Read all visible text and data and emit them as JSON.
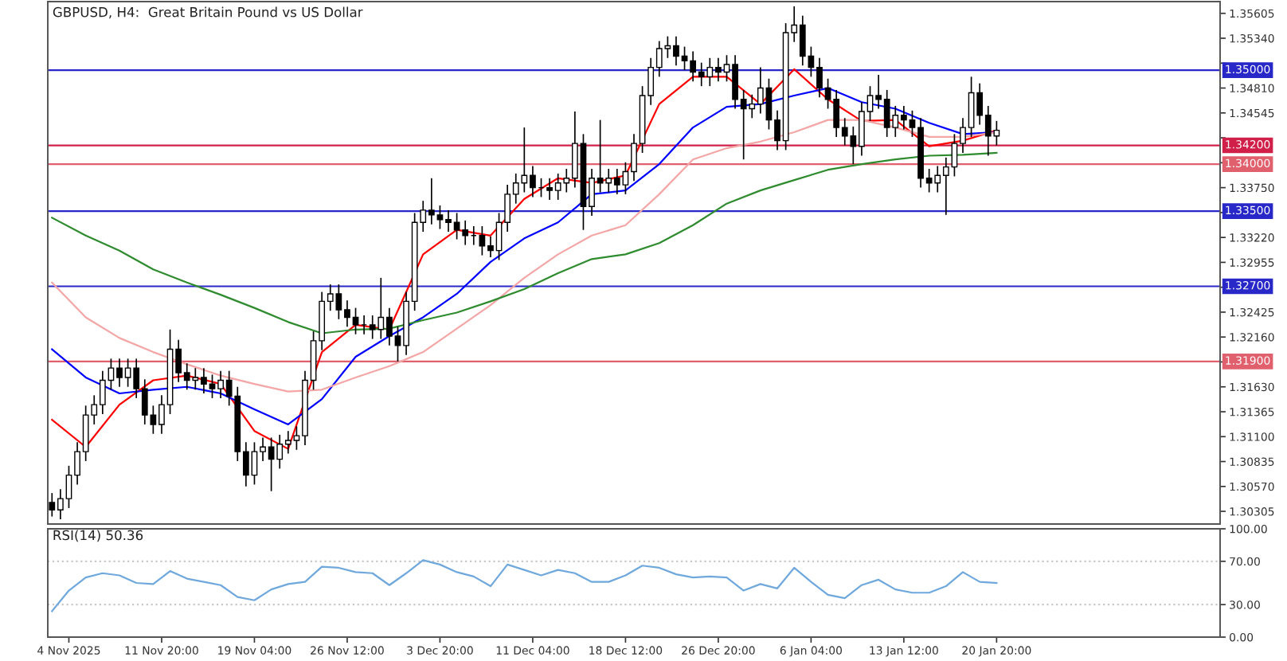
{
  "chart_data": [
    {
      "type": "candlestick",
      "title": "GBPUSD, H4:  Great Britain Pound vs US Dollar",
      "tick_labels": "y",
      "categories": [
        null,
        null,
        null,
        null,
        null,
        null,
        null,
        null,
        null,
        null,
        null,
        null,
        null,
        null,
        null,
        null,
        null,
        null,
        null,
        null,
        null,
        null,
        null,
        null,
        null,
        null,
        null,
        null,
        null,
        null,
        null,
        null,
        null,
        null,
        null,
        null,
        null,
        null,
        null,
        null,
        null,
        null,
        null,
        null,
        null,
        null,
        null,
        null,
        null,
        null,
        null,
        null,
        null,
        null,
        null,
        null,
        null,
        null,
        null,
        null,
        null,
        null,
        null,
        null,
        null,
        null,
        null,
        null,
        null,
        null,
        null,
        null,
        null,
        null,
        null,
        null,
        null,
        null,
        null,
        null,
        null,
        null,
        null,
        null,
        null,
        null,
        null,
        null,
        null,
        null,
        null,
        null,
        null,
        null,
        null,
        null,
        null,
        null,
        null,
        null,
        null,
        null,
        null,
        null,
        null,
        null,
        null,
        null,
        null,
        null,
        null,
        null,
        null,
        null,
        null,
        null,
        null,
        null,
        null,
        null,
        null,
        null,
        null,
        null,
        null,
        null,
        null,
        null,
        null,
        null,
        null,
        null,
        null,
        null,
        null,
        null,
        null,
        null,
        null
      ],
      "ohlc": [
        [
          1.304,
          1.305,
          1.3025,
          1.3032
        ],
        [
          1.3032,
          1.3054,
          1.3022,
          1.3044
        ],
        [
          1.3044,
          1.3079,
          1.3034,
          1.3069
        ],
        [
          1.3069,
          1.3104,
          1.3059,
          1.3094
        ],
        [
          1.3094,
          1.3143,
          1.3084,
          1.3133
        ],
        [
          1.3133,
          1.3154,
          1.3123,
          1.3144
        ],
        [
          1.3144,
          1.318,
          1.3134,
          1.317
        ],
        [
          1.317,
          1.3193,
          1.316,
          1.3183
        ],
        [
          1.3183,
          1.3193,
          1.3163,
          1.3173
        ],
        [
          1.3173,
          1.3193,
          1.3163,
          1.3183
        ],
        [
          1.3183,
          1.3193,
          1.3151,
          1.3161
        ],
        [
          1.3161,
          1.3171,
          1.3123,
          1.3133
        ],
        [
          1.3133,
          1.3143,
          1.3113,
          1.3123
        ],
        [
          1.3123,
          1.3154,
          1.3113,
          1.3144
        ],
        [
          1.3144,
          1.3224,
          1.3134,
          1.3203
        ],
        [
          1.3203,
          1.3213,
          1.3168,
          1.3178
        ],
        [
          1.3178,
          1.3188,
          1.316,
          1.317
        ],
        [
          1.317,
          1.3183,
          1.316,
          1.3173
        ],
        [
          1.3173,
          1.3183,
          1.3156,
          1.3166
        ],
        [
          1.3166,
          1.3176,
          1.3151,
          1.3161
        ],
        [
          1.3161,
          1.318,
          1.3151,
          1.317
        ],
        [
          1.317,
          1.318,
          1.3143,
          1.3153
        ],
        [
          1.3153,
          1.3163,
          1.3084,
          1.3094
        ],
        [
          1.3094,
          1.3104,
          1.3057,
          1.3069
        ],
        [
          1.3069,
          1.3104,
          1.3059,
          1.3094
        ],
        [
          1.3094,
          1.3109,
          1.3084,
          1.3099
        ],
        [
          1.3099,
          1.3109,
          1.3052,
          1.3086
        ],
        [
          1.3086,
          1.3112,
          1.3076,
          1.3102
        ],
        [
          1.3102,
          1.3116,
          1.3092,
          1.3106
        ],
        [
          1.3106,
          1.3121,
          1.3096,
          1.3111
        ],
        [
          1.3111,
          1.318,
          1.3101,
          1.317
        ],
        [
          1.317,
          1.3222,
          1.316,
          1.3212
        ],
        [
          1.3212,
          1.3264,
          1.3202,
          1.3254
        ],
        [
          1.3254,
          1.3272,
          1.3244,
          1.3262
        ],
        [
          1.3262,
          1.3272,
          1.3235,
          1.3245
        ],
        [
          1.3245,
          1.3255,
          1.3227,
          1.3237
        ],
        [
          1.3237,
          1.3247,
          1.3219,
          1.3229
        ],
        [
          1.3229,
          1.3239,
          1.3219,
          1.3229
        ],
        [
          1.3229,
          1.3239,
          1.3214,
          1.3224
        ],
        [
          1.3224,
          1.3279,
          1.3214,
          1.3237
        ],
        [
          1.3237,
          1.3247,
          1.3207,
          1.3217
        ],
        [
          1.3217,
          1.3227,
          1.319,
          1.3207
        ],
        [
          1.3207,
          1.3264,
          1.3197,
          1.3254
        ],
        [
          1.3254,
          1.3348,
          1.3244,
          1.3338
        ],
        [
          1.3338,
          1.3361,
          1.3328,
          1.3351
        ],
        [
          1.3351,
          1.3385,
          1.3336,
          1.3346
        ],
        [
          1.3346,
          1.3356,
          1.3331,
          1.3341
        ],
        [
          1.3341,
          1.3351,
          1.3328,
          1.3338
        ],
        [
          1.3338,
          1.3348,
          1.332,
          1.333
        ],
        [
          1.333,
          1.334,
          1.3314,
          1.3324
        ],
        [
          1.3324,
          1.3334,
          1.3314,
          1.3324
        ],
        [
          1.3324,
          1.3334,
          1.3303,
          1.3313
        ],
        [
          1.3313,
          1.3323,
          1.3301,
          1.3308
        ],
        [
          1.3308,
          1.3348,
          1.3298,
          1.3338
        ],
        [
          1.3338,
          1.3378,
          1.3328,
          1.3368
        ],
        [
          1.3368,
          1.339,
          1.3358,
          1.338
        ],
        [
          1.338,
          1.3439,
          1.337,
          1.3388
        ],
        [
          1.3388,
          1.3398,
          1.3365,
          1.3375
        ],
        [
          1.3375,
          1.3385,
          1.3365,
          1.3375
        ],
        [
          1.3375,
          1.3385,
          1.3362,
          1.3372
        ],
        [
          1.3372,
          1.339,
          1.3362,
          1.338
        ],
        [
          1.338,
          1.3395,
          1.337,
          1.3385
        ],
        [
          1.3385,
          1.3456,
          1.3375,
          1.3422
        ],
        [
          1.3422,
          1.3432,
          1.333,
          1.3355
        ],
        [
          1.3355,
          1.3395,
          1.3345,
          1.3385
        ],
        [
          1.3385,
          1.3447,
          1.337,
          1.338
        ],
        [
          1.338,
          1.3395,
          1.337,
          1.3385
        ],
        [
          1.3385,
          1.3395,
          1.3368,
          1.3378
        ],
        [
          1.3378,
          1.3402,
          1.3368,
          1.3392
        ],
        [
          1.3392,
          1.3432,
          1.3382,
          1.3422
        ],
        [
          1.3422,
          1.3483,
          1.3412,
          1.3473
        ],
        [
          1.3473,
          1.3513,
          1.3463,
          1.3503
        ],
        [
          1.3503,
          1.3531,
          1.3493,
          1.3523
        ],
        [
          1.3523,
          1.3536,
          1.3513,
          1.3526
        ],
        [
          1.3526,
          1.3536,
          1.3505,
          1.3515
        ],
        [
          1.3515,
          1.3525,
          1.35,
          1.351
        ],
        [
          1.351,
          1.352,
          1.3488,
          1.3498
        ],
        [
          1.3498,
          1.3508,
          1.3483,
          1.3493
        ],
        [
          1.3493,
          1.3513,
          1.3483,
          1.3503
        ],
        [
          1.3503,
          1.3513,
          1.3488,
          1.3498
        ],
        [
          1.3498,
          1.3516,
          1.3488,
          1.3506
        ],
        [
          1.3506,
          1.3516,
          1.3459,
          1.3469
        ],
        [
          1.3469,
          1.3479,
          1.3405,
          1.3459
        ],
        [
          1.3459,
          1.3474,
          1.3449,
          1.3464
        ],
        [
          1.3464,
          1.3503,
          1.3454,
          1.3481
        ],
        [
          1.3481,
          1.3491,
          1.3437,
          1.3447
        ],
        [
          1.3447,
          1.3457,
          1.3415,
          1.3425
        ],
        [
          1.3425,
          1.355,
          1.3415,
          1.354
        ],
        [
          1.354,
          1.3568,
          1.353,
          1.3548
        ],
        [
          1.3548,
          1.3558,
          1.3505,
          1.3515
        ],
        [
          1.3515,
          1.3525,
          1.3493,
          1.3503
        ],
        [
          1.3503,
          1.3513,
          1.3471,
          1.3481
        ],
        [
          1.3481,
          1.3491,
          1.3459,
          1.3469
        ],
        [
          1.3469,
          1.3479,
          1.3429,
          1.3439
        ],
        [
          1.3439,
          1.3449,
          1.342,
          1.343
        ],
        [
          1.343,
          1.344,
          1.34,
          1.3419
        ],
        [
          1.3419,
          1.3466,
          1.3409,
          1.3456
        ],
        [
          1.3456,
          1.3483,
          1.3446,
          1.3473
        ],
        [
          1.3473,
          1.3495,
          1.3459,
          1.3469
        ],
        [
          1.3469,
          1.3479,
          1.3429,
          1.3439
        ],
        [
          1.3439,
          1.3462,
          1.3429,
          1.3452
        ],
        [
          1.3452,
          1.3462,
          1.3437,
          1.3447
        ],
        [
          1.3447,
          1.3457,
          1.3429,
          1.3439
        ],
        [
          1.3439,
          1.3449,
          1.3375,
          1.3385
        ],
        [
          1.3385,
          1.3395,
          1.337,
          1.338
        ],
        [
          1.338,
          1.3398,
          1.337,
          1.3388
        ],
        [
          1.3388,
          1.3407,
          1.3346,
          1.3397
        ],
        [
          1.3397,
          1.3432,
          1.3387,
          1.3422
        ],
        [
          1.3422,
          1.3449,
          1.3412,
          1.3439
        ],
        [
          1.3439,
          1.3493,
          1.3429,
          1.3476
        ],
        [
          1.3476,
          1.3486,
          1.3442,
          1.3452
        ],
        [
          1.3452,
          1.3462,
          1.3409,
          1.343
        ],
        [
          1.343,
          1.3446,
          1.342,
          1.3436
        ],
        null,
        null,
        null,
        null,
        null,
        null,
        null,
        null,
        null,
        null,
        null,
        null,
        null,
        null,
        null,
        null,
        null,
        null,
        null,
        null,
        null,
        null,
        null,
        null,
        null,
        null
      ],
      "series": [
        {
          "type": "line",
          "color": "#ff0000",
          "values": [
            1.3128,
            null,
            null,
            null,
            1.3099,
            null,
            null,
            null,
            1.3144,
            null,
            null,
            null,
            1.317,
            null,
            null,
            null,
            1.3175,
            null,
            null,
            null,
            1.3166,
            null,
            null,
            null,
            1.3116,
            null,
            null,
            null,
            1.3097,
            null,
            null,
            null,
            1.32,
            null,
            null,
            null,
            1.3229,
            null,
            null,
            null,
            1.3224,
            null,
            null,
            null,
            1.3304,
            null,
            null,
            null,
            1.333,
            null,
            null,
            null,
            1.3324,
            null,
            null,
            null,
            1.3363,
            null,
            null,
            null,
            1.3385,
            null,
            null,
            null,
            1.338,
            null,
            null,
            null,
            1.3388,
            null,
            null,
            null,
            1.3464,
            null,
            null,
            null,
            1.3493,
            null,
            null,
            null,
            1.3493,
            null,
            null,
            null,
            1.3464,
            null,
            null,
            null,
            1.3501,
            null,
            null,
            null,
            1.3469,
            null,
            null,
            null,
            1.3446,
            null,
            null,
            null,
            1.3447,
            null,
            null,
            null,
            1.3419,
            null,
            null,
            null,
            1.3425,
            null,
            null,
            null,
            1.3436,
            null,
            null,
            null,
            null,
            null,
            null,
            null,
            null,
            null,
            null,
            null,
            null,
            null,
            null,
            null,
            null,
            null,
            null,
            null,
            null,
            null,
            null,
            null,
            null,
            null,
            null
          ]
        },
        {
          "type": "line",
          "color": "#0000ff",
          "values": [
            1.3203,
            null,
            null,
            null,
            1.3173,
            null,
            null,
            null,
            1.3156,
            null,
            null,
            null,
            1.316,
            null,
            null,
            null,
            1.3163,
            null,
            null,
            null,
            1.3156,
            null,
            null,
            null,
            1.3139,
            null,
            null,
            null,
            1.3123,
            null,
            null,
            null,
            1.315,
            null,
            null,
            null,
            1.3195,
            null,
            null,
            null,
            1.3217,
            null,
            null,
            null,
            1.3237,
            null,
            null,
            null,
            1.3262,
            null,
            null,
            null,
            1.3296,
            null,
            null,
            null,
            1.3321,
            null,
            null,
            null,
            1.3338,
            null,
            null,
            null,
            1.3368,
            null,
            null,
            null,
            1.3372,
            null,
            null,
            null,
            1.34,
            null,
            null,
            null,
            1.3439,
            null,
            null,
            null,
            1.3461,
            null,
            null,
            null,
            1.3464,
            null,
            null,
            null,
            1.3473,
            null,
            null,
            null,
            1.3481,
            null,
            null,
            null,
            1.3466,
            null,
            null,
            null,
            1.3459,
            null,
            null,
            null,
            1.3444,
            null,
            null,
            null,
            1.3432,
            null,
            null,
            null,
            1.3434,
            null,
            null,
            null,
            null,
            null,
            null,
            null,
            null,
            null,
            null,
            null,
            null,
            null,
            null,
            null,
            null,
            null,
            null,
            null,
            null,
            null,
            null,
            null,
            null,
            null,
            null
          ]
        },
        {
          "type": "line",
          "color": "#f4a6a6",
          "values": [
            1.3274,
            null,
            null,
            null,
            1.3237,
            null,
            null,
            null,
            1.3215,
            null,
            null,
            null,
            1.32,
            null,
            null,
            null,
            1.3187,
            null,
            null,
            null,
            1.3175,
            null,
            null,
            null,
            1.3166,
            null,
            null,
            null,
            1.3158,
            null,
            null,
            null,
            1.316,
            null,
            null,
            null,
            1.3173,
            null,
            null,
            null,
            1.3185,
            null,
            null,
            null,
            1.32,
            null,
            null,
            null,
            1.3225,
            null,
            null,
            null,
            1.325,
            null,
            null,
            null,
            1.3279,
            null,
            null,
            null,
            1.3304,
            null,
            null,
            null,
            1.3324,
            null,
            null,
            null,
            1.3335,
            null,
            null,
            null,
            1.3368,
            null,
            null,
            null,
            1.3405,
            null,
            null,
            null,
            1.3417,
            null,
            null,
            null,
            1.3424,
            null,
            null,
            null,
            1.3434,
            null,
            null,
            null,
            1.3447,
            null,
            null,
            null,
            1.3447,
            null,
            null,
            null,
            1.3439,
            null,
            null,
            null,
            1.3429,
            null,
            null,
            null,
            1.3429,
            null,
            null,
            null,
            1.3434,
            null,
            null,
            null,
            null,
            null,
            null,
            null,
            null,
            null,
            null,
            null,
            null,
            null,
            null,
            null,
            null,
            null,
            null,
            null,
            null,
            null,
            null,
            null,
            null,
            null,
            null
          ]
        },
        {
          "type": "line",
          "color": "#2e8b2e",
          "values": [
            1.3343,
            null,
            null,
            null,
            1.3324,
            null,
            null,
            null,
            1.3308,
            null,
            null,
            null,
            1.3288,
            null,
            null,
            null,
            1.3274,
            null,
            null,
            null,
            1.3261,
            null,
            null,
            null,
            1.3247,
            null,
            null,
            null,
            1.3232,
            null,
            null,
            null,
            1.322,
            null,
            null,
            null,
            1.3224,
            null,
            null,
            null,
            1.3225,
            null,
            null,
            null,
            1.3234,
            null,
            null,
            null,
            1.3242,
            null,
            null,
            null,
            1.3254,
            null,
            null,
            null,
            1.3267,
            null,
            null,
            null,
            1.3284,
            null,
            null,
            null,
            1.3299,
            null,
            null,
            null,
            1.3304,
            null,
            null,
            null,
            1.3316,
            null,
            null,
            null,
            1.3335,
            null,
            null,
            null,
            1.3358,
            null,
            null,
            null,
            1.3372,
            null,
            null,
            null,
            1.3383,
            null,
            null,
            null,
            1.3394,
            null,
            null,
            null,
            1.34,
            null,
            null,
            null,
            1.3405,
            null,
            null,
            null,
            1.3409,
            null,
            null,
            null,
            1.341,
            null,
            null,
            null,
            1.3412,
            null,
            null,
            null,
            null,
            null,
            null,
            null,
            null,
            null,
            null,
            null,
            null,
            null,
            null,
            null,
            null,
            null,
            null,
            null,
            null,
            null,
            null,
            null,
            null,
            null,
            null
          ]
        }
      ],
      "ylim": [
        1.3017,
        1.3573
      ],
      "yticks": [
        1.35605,
        {
          "value": 1.3534,
          "label": "1.35340"
        },
        {
          "value": 1.35075,
          "label": null
        },
        {
          "value": 1.3481,
          "label": "1.34810"
        },
        1.34545,
        {
          "value": 1.3428,
          "label": null
        },
        {
          "value": 1.34015,
          "label": null
        },
        {
          "value": 1.3375,
          "label": "1.33750"
        },
        {
          "value": 1.33485,
          "label": null
        },
        {
          "value": 1.3322,
          "label": "1.33220"
        },
        1.32955,
        {
          "value": 1.3269,
          "label": null
        },
        1.32425,
        {
          "value": 1.3216,
          "label": "1.32160"
        },
        {
          "value": 1.31895,
          "label": null
        },
        {
          "value": 1.3163,
          "label": "1.31630"
        },
        1.31365,
        {
          "value": 1.311,
          "label": "1.31100"
        },
        1.30835,
        {
          "value": 1.3057,
          "label": "1.30570"
        },
        1.30305
      ],
      "ref_lines": [
        {
          "axis": "y",
          "value": 1.35,
          "label": "1.35000",
          "color": "#2828c8"
        },
        {
          "axis": "y",
          "value": 1.342,
          "label": "1.34200",
          "color": "#d0204a"
        },
        {
          "axis": "y",
          "value": 1.34,
          "label": "1.34000",
          "color": "#e0606e"
        },
        {
          "axis": "y",
          "value": 1.335,
          "label": "1.33500",
          "color": "#2828c8"
        },
        {
          "axis": "y",
          "value": 1.327,
          "label": "1.32700",
          "color": "#2828c8"
        },
        {
          "axis": "y",
          "value": 1.319,
          "label": "1.31900",
          "color": "#e0606e"
        }
      ]
    },
    {
      "type": "line",
      "title": "RSI(14) 50.36",
      "categories": [
        null,
        null,
        "4 Nov 2025",
        null,
        null,
        null,
        null,
        null,
        null,
        null,
        null,
        null,
        null,
        "11 Nov 20:00",
        null,
        null,
        null,
        null,
        null,
        null,
        null,
        null,
        null,
        null,
        "19 Nov 04:00",
        null,
        null,
        null,
        null,
        null,
        null,
        null,
        null,
        null,
        null,
        "26 Nov 12:00",
        null,
        null,
        null,
        null,
        null,
        null,
        null,
        null,
        null,
        null,
        "3 Dec 20:00",
        null,
        null,
        null,
        null,
        null,
        null,
        null,
        null,
        null,
        null,
        "11 Dec 04:00",
        null,
        null,
        null,
        null,
        null,
        null,
        null,
        null,
        null,
        null,
        "18 Dec 12:00",
        null,
        null,
        null,
        null,
        null,
        null,
        null,
        null,
        null,
        null,
        "26 Dec 20:00",
        null,
        null,
        null,
        null,
        null,
        null,
        null,
        null,
        null,
        null,
        "6 Jan 04:00",
        null,
        null,
        null,
        null,
        null,
        null,
        null,
        null,
        null,
        null,
        "13 Jan 12:00",
        null,
        null,
        null,
        null,
        null,
        null,
        null,
        null,
        null,
        null,
        "20 Jan 20:00",
        null,
        null,
        null,
        null,
        null,
        null,
        null,
        null,
        null,
        null,
        null,
        null,
        null,
        null,
        null,
        null,
        null,
        null,
        null,
        null,
        null,
        null,
        null,
        null,
        null,
        null
      ],
      "series": [
        {
          "type": "line",
          "color": "#6fa8dc",
          "values": [
            24,
            null,
            43,
            null,
            55,
            null,
            59,
            null,
            57,
            null,
            50,
            null,
            49,
            null,
            61,
            null,
            54,
            null,
            51,
            null,
            48,
            null,
            37,
            null,
            34,
            null,
            44,
            null,
            49,
            null,
            51,
            null,
            65,
            null,
            64,
            null,
            60,
            null,
            59,
            null,
            48,
            null,
            59,
            null,
            71,
            null,
            67,
            null,
            60,
            null,
            56,
            null,
            47,
            null,
            67,
            null,
            62,
            null,
            57,
            null,
            62,
            null,
            59,
            null,
            51,
            null,
            51,
            null,
            57,
            null,
            66,
            null,
            64,
            null,
            58,
            null,
            55,
            null,
            56,
            null,
            55,
            null,
            43,
            null,
            49,
            null,
            45,
            null,
            64,
            null,
            51,
            null,
            39,
            null,
            36,
            null,
            48,
            null,
            53,
            null,
            44,
            null,
            41,
            null,
            41,
            null,
            47,
            null,
            60,
            null,
            51,
            null,
            50,
            null,
            null,
            null,
            null,
            null,
            null,
            null,
            null,
            null,
            null,
            null,
            null,
            null,
            null,
            null,
            null,
            null,
            null,
            null,
            null,
            null,
            null,
            null,
            null,
            null,
            null
          ]
        }
      ],
      "ylim": [
        0,
        100
      ],
      "yticks": [
        {
          "value": 0,
          "label": "0.00"
        },
        {
          "value": 30,
          "label": "30.00"
        },
        {
          "value": 70,
          "label": "70.00"
        },
        {
          "value": 100,
          "label": "100.00"
        }
      ],
      "ref_lines": [
        {
          "axis": "y",
          "value": 30,
          "color": "#c8c8c8",
          "line_style": "dotted"
        },
        {
          "axis": "y",
          "value": 70,
          "color": "#c8c8c8",
          "line_style": "dotted"
        }
      ]
    }
  ]
}
